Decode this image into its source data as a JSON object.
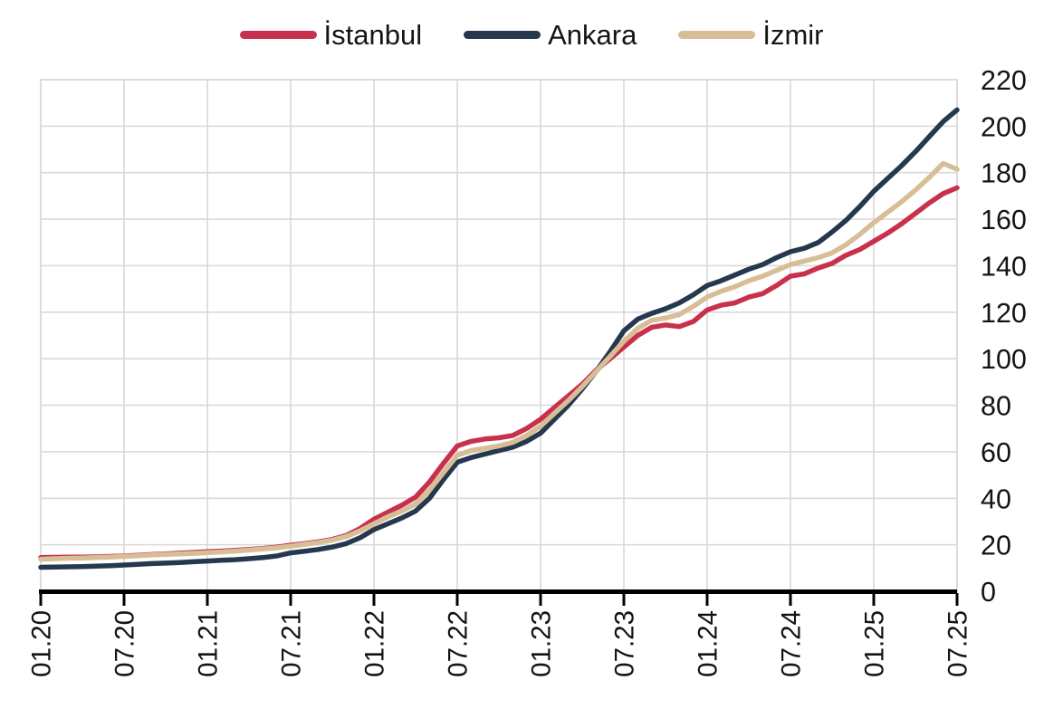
{
  "chart_data": {
    "type": "line",
    "title": "",
    "xlabel": "",
    "ylabel": "",
    "x_tick_labels": [
      "01.20",
      "07.20",
      "01.21",
      "07.21",
      "01.22",
      "07.22",
      "01.23",
      "07.23",
      "01.24",
      "07.24",
      "01.25",
      "07.25"
    ],
    "x_tick_month_index": [
      0,
      6,
      12,
      18,
      24,
      30,
      36,
      42,
      48,
      54,
      60,
      66
    ],
    "y_ticks": [
      0,
      20,
      40,
      60,
      80,
      100,
      120,
      140,
      160,
      180,
      200,
      220
    ],
    "ylim": [
      0,
      220
    ],
    "grid": true,
    "legend_position": "top",
    "y_axis_side": "right",
    "x_unit": "month (MM.YY), Jan 2020 - Jul 2025",
    "series": [
      {
        "name": "İstanbul",
        "color": "#C8304C",
        "values": [
          14.5,
          14.6,
          14.7,
          14.7,
          14.8,
          15.0,
          15.2,
          15.5,
          15.8,
          16.1,
          16.4,
          16.7,
          17.0,
          17.3,
          17.6,
          18.0,
          18.4,
          19.0,
          19.8,
          20.5,
          21.3,
          22.3,
          24.0,
          27.0,
          31,
          34,
          37,
          40.5,
          47,
          55,
          62.5,
          64.5,
          65.5,
          66,
          67,
          70,
          74,
          79,
          84,
          89,
          95,
          100,
          105,
          110,
          113.5,
          114.5,
          113.8,
          116,
          121,
          123,
          124,
          126.5,
          128,
          131.5,
          135.5,
          136.5,
          139,
          141,
          144.5,
          147,
          150.5,
          154,
          158,
          162.5,
          167,
          171,
          173.5
        ]
      },
      {
        "name": "Ankara",
        "color": "#25384E",
        "values": [
          10.3,
          10.4,
          10.5,
          10.6,
          10.8,
          11.0,
          11.3,
          11.6,
          11.9,
          12.1,
          12.4,
          12.7,
          13.0,
          13.3,
          13.6,
          14.0,
          14.5,
          15.2,
          16.5,
          17.2,
          18.0,
          19.0,
          20.5,
          23.0,
          26.5,
          29,
          31.5,
          34.5,
          40,
          48,
          55.5,
          57.5,
          59,
          60.5,
          62,
          64.5,
          68,
          74,
          80,
          87,
          94.5,
          103,
          112,
          117,
          119.5,
          121.5,
          124,
          127.5,
          131.5,
          133.5,
          136,
          138.5,
          140.5,
          143.5,
          146,
          147.5,
          150,
          154.5,
          159.5,
          165.5,
          172,
          177.5,
          183,
          189,
          195.5,
          202,
          207
        ]
      },
      {
        "name": "İzmir",
        "color": "#D8BE96",
        "values": [
          13.8,
          14.0,
          14.2,
          14.3,
          14.5,
          14.7,
          15.0,
          15.3,
          15.6,
          15.9,
          16.1,
          16.3,
          16.6,
          16.9,
          17.3,
          17.7,
          18.2,
          18.7,
          19.4,
          20.2,
          21.0,
          22.0,
          23.5,
          26.0,
          29,
          32,
          34.5,
          37.5,
          43.5,
          51,
          58.5,
          60.5,
          61.5,
          62.5,
          64,
          67,
          71,
          76.5,
          82,
          88,
          94.5,
          101,
          107.5,
          113,
          116.5,
          117.5,
          119,
          122.5,
          126.5,
          129,
          131,
          133.5,
          135.5,
          138,
          140.5,
          142,
          143.5,
          145.5,
          149,
          153.5,
          158.5,
          163,
          167.5,
          172.5,
          178,
          184,
          181.5
        ]
      }
    ]
  },
  "colors": {
    "grid": "#D9D9D9",
    "plot_border": "#D9D9D9",
    "axis": "#000000",
    "tick_text": "#141414",
    "background": "#FFFFFF"
  }
}
